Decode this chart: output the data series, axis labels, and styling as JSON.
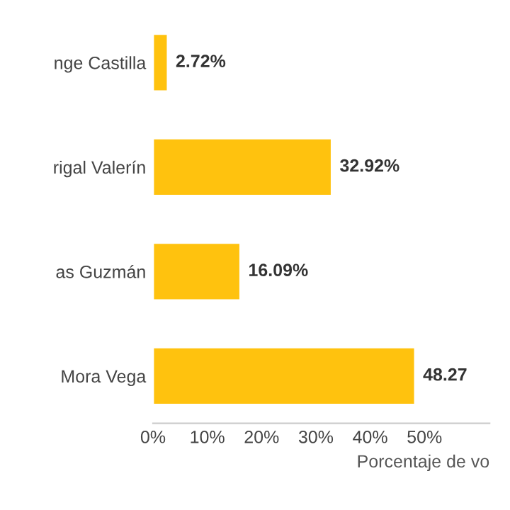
{
  "chart_data": {
    "type": "bar",
    "orientation": "horizontal",
    "xlabel": "Porcentaje de vo",
    "categories": [
      "nge Castilla",
      "rigal Valerín",
      "as Guzmán",
      "Mora Vega"
    ],
    "values": [
      2.72,
      32.92,
      16.09,
      48.27
    ],
    "color": "#ffc20e",
    "value_labels": [
      "2.72%",
      "32.92%",
      "16.09%",
      "48.27"
    ],
    "xlim": [
      0,
      62
    ],
    "xticks": [
      {
        "value": 0,
        "label": "0%"
      },
      {
        "value": 10,
        "label": "10%"
      },
      {
        "value": 20,
        "label": "20%"
      },
      {
        "value": 30,
        "label": "30%"
      },
      {
        "value": 40,
        "label": "40%"
      },
      {
        "value": 50,
        "label": "50%"
      }
    ],
    "grid": false
  }
}
